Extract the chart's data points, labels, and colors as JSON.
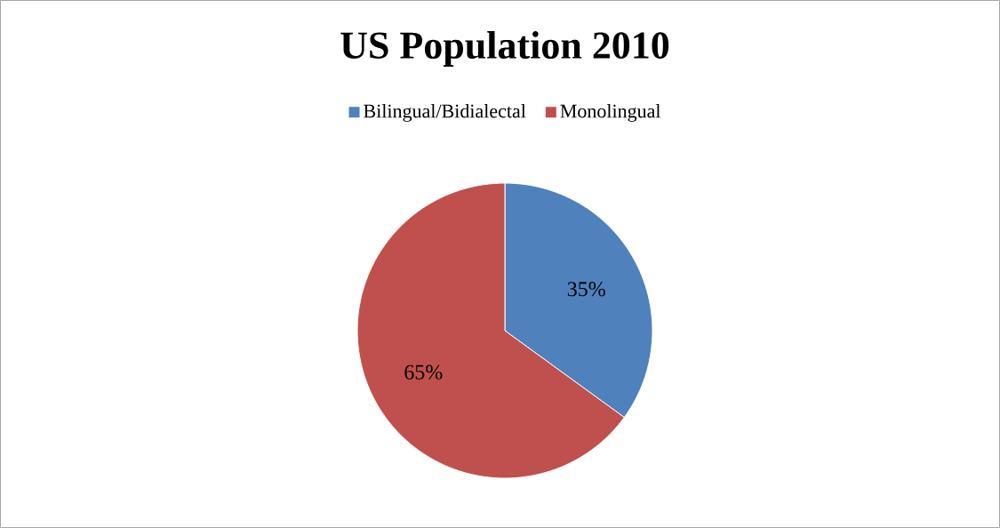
{
  "chart_data": {
    "type": "pie",
    "title": "US Population 2010",
    "categories": [
      "Bilingual/Bidialectal",
      "Monolingual"
    ],
    "values": [
      35,
      65
    ],
    "colors": [
      "#4f81bd",
      "#c0504d"
    ],
    "value_labels": [
      "35%",
      "65%"
    ],
    "legend": "top"
  }
}
